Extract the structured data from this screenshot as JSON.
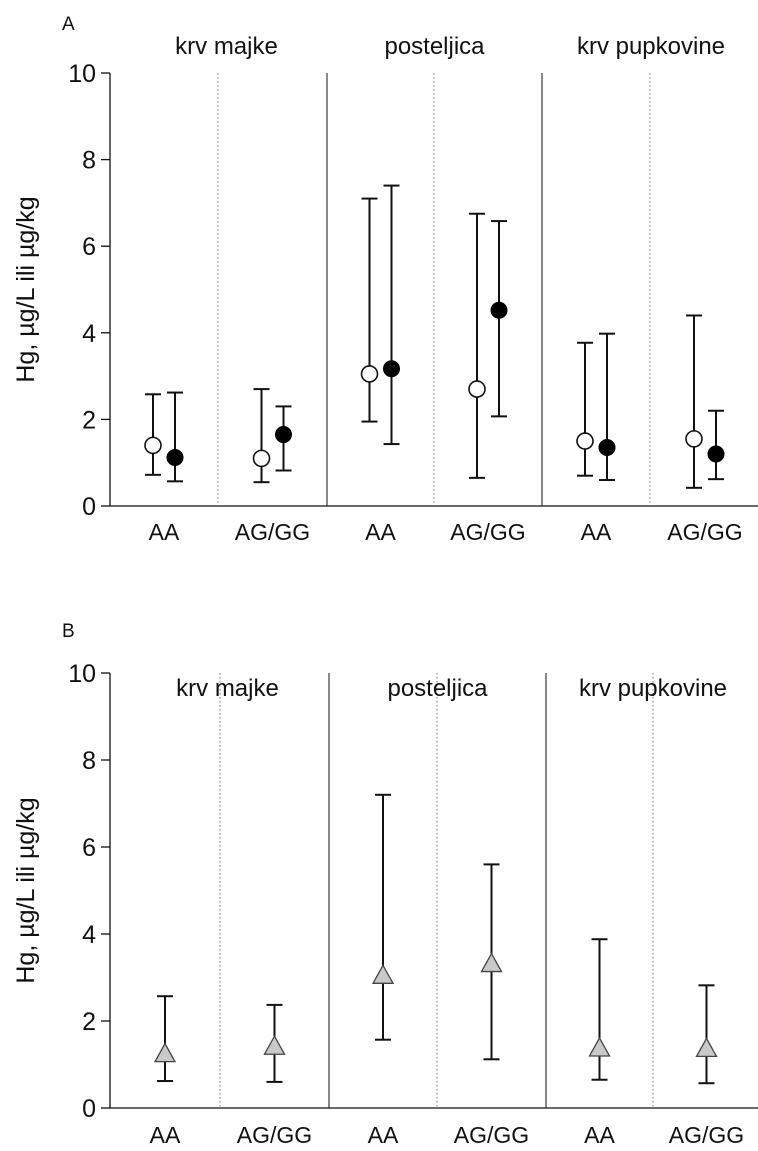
{
  "chart_data": [
    {
      "type": "errorbar",
      "panel_label": "A",
      "ylabel": "Hg, µg/L ili µg/kg",
      "ylim": [
        0,
        10
      ],
      "y_ticks": [
        "0",
        "2",
        "4",
        "6",
        "8",
        "10"
      ],
      "sections": [
        "krv majke",
        "posteljica",
        "krv pupkovine"
      ],
      "genotypes": [
        "AA",
        "AG/GG"
      ],
      "series": [
        {
          "marker": "open-circle",
          "points": [
            {
              "section": "krv majke",
              "genotype": "AA",
              "y": 1.4,
              "low": 0.72,
              "high": 2.58
            },
            {
              "section": "krv majke",
              "genotype": "AG/GG",
              "y": 1.1,
              "low": 0.55,
              "high": 2.7
            },
            {
              "section": "posteljica",
              "genotype": "AA",
              "y": 3.05,
              "low": 1.95,
              "high": 7.1
            },
            {
              "section": "posteljica",
              "genotype": "AG/GG",
              "y": 2.7,
              "low": 0.65,
              "high": 6.75
            },
            {
              "section": "krv pupkovine",
              "genotype": "AA",
              "y": 1.5,
              "low": 0.7,
              "high": 3.77
            },
            {
              "section": "krv pupkovine",
              "genotype": "AG/GG",
              "y": 1.55,
              "low": 0.42,
              "high": 4.4
            }
          ]
        },
        {
          "marker": "filled-circle",
          "points": [
            {
              "section": "krv majke",
              "genotype": "AA",
              "y": 1.12,
              "low": 0.57,
              "high": 2.62
            },
            {
              "section": "krv majke",
              "genotype": "AG/GG",
              "y": 1.65,
              "low": 0.82,
              "high": 2.3
            },
            {
              "section": "posteljica",
              "genotype": "AA",
              "y": 3.17,
              "low": 1.43,
              "high": 7.4
            },
            {
              "section": "posteljica",
              "genotype": "AG/GG",
              "y": 4.52,
              "low": 2.07,
              "high": 6.58
            },
            {
              "section": "krv pupkovine",
              "genotype": "AA",
              "y": 1.35,
              "low": 0.6,
              "high": 3.98
            },
            {
              "section": "krv pupkovine",
              "genotype": "AG/GG",
              "y": 1.2,
              "low": 0.62,
              "high": 2.2
            }
          ]
        }
      ]
    },
    {
      "type": "errorbar",
      "panel_label": "B",
      "ylabel": "Hg, µg/L ili µg/kg",
      "ylim": [
        0,
        10
      ],
      "y_ticks": [
        "0",
        "2",
        "4",
        "6",
        "8",
        "10"
      ],
      "sections": [
        "krv majke",
        "posteljica",
        "krv pupkovine"
      ],
      "genotypes": [
        "AA",
        "AG/GG"
      ],
      "series": [
        {
          "marker": "gray-triangle",
          "points": [
            {
              "section": "krv majke",
              "genotype": "AA",
              "y": 1.25,
              "low": 0.62,
              "high": 2.57
            },
            {
              "section": "krv majke",
              "genotype": "AG/GG",
              "y": 1.42,
              "low": 0.6,
              "high": 2.37
            },
            {
              "section": "posteljica",
              "genotype": "AA",
              "y": 3.05,
              "low": 1.57,
              "high": 7.2
            },
            {
              "section": "posteljica",
              "genotype": "AG/GG",
              "y": 3.32,
              "low": 1.12,
              "high": 5.6
            },
            {
              "section": "krv pupkovine",
              "genotype": "AA",
              "y": 1.38,
              "low": 0.65,
              "high": 3.88
            },
            {
              "section": "krv pupkovine",
              "genotype": "AG/GG",
              "y": 1.37,
              "low": 0.57,
              "high": 2.82
            }
          ]
        }
      ]
    }
  ]
}
